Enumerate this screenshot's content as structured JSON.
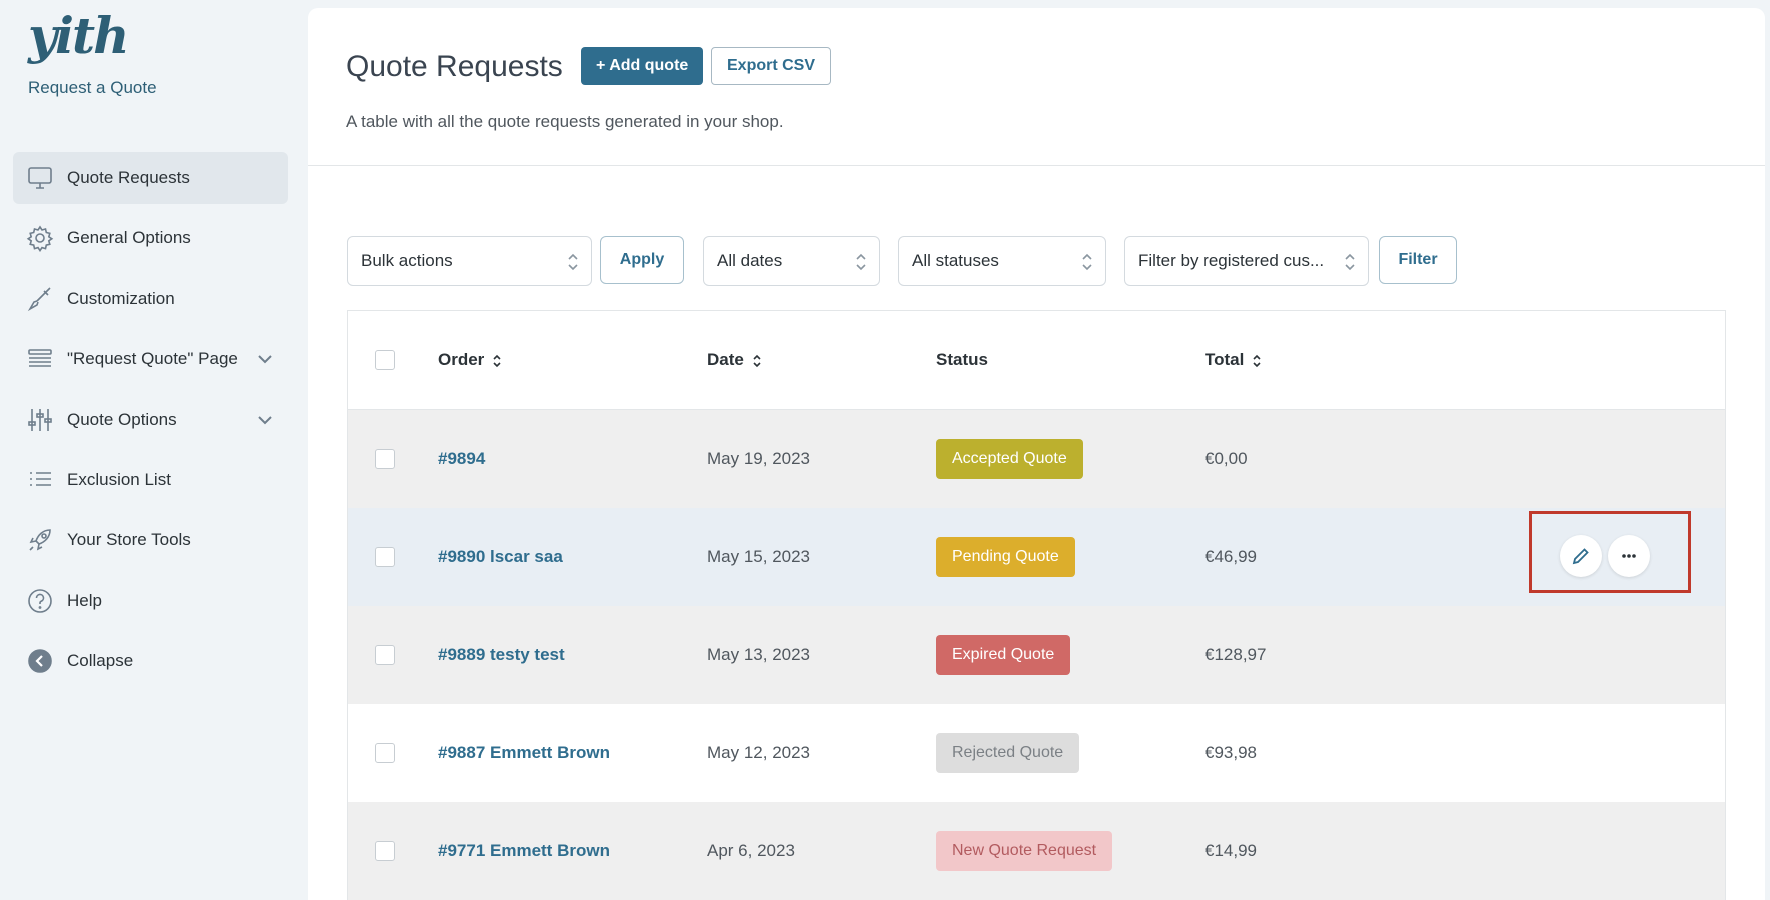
{
  "sidebar": {
    "logo_text": "yith",
    "plugin_name": "Request a Quote",
    "items": [
      {
        "label": "Quote Requests",
        "icon": "monitor-icon",
        "active": true
      },
      {
        "label": "General Options",
        "icon": "gear-icon"
      },
      {
        "label": "Customization",
        "icon": "brush-icon"
      },
      {
        "label": "\"Request Quote\" Page",
        "icon": "layers-icon",
        "has_submenu": true
      },
      {
        "label": "Quote Options",
        "icon": "sliders-icon",
        "has_submenu": true
      },
      {
        "label": "Exclusion List",
        "icon": "list-icon"
      },
      {
        "label": "Your Store Tools",
        "icon": "rocket-icon"
      },
      {
        "label": "Help",
        "icon": "help-circle-icon"
      },
      {
        "label": "Collapse",
        "icon": "collapse-arrow-icon"
      }
    ]
  },
  "header": {
    "title": "Quote Requests",
    "add_button": "+ Add quote",
    "export_button": "Export CSV",
    "description": "A table with all the quote requests generated in your shop."
  },
  "filters": {
    "bulk_actions": "Bulk actions",
    "apply_button": "Apply",
    "dates": "All dates",
    "statuses": "All statuses",
    "customer": "Filter by registered cus...",
    "filter_button": "Filter"
  },
  "table": {
    "columns": {
      "order": "Order",
      "date": "Date",
      "status": "Status",
      "total": "Total"
    },
    "rows": [
      {
        "order": "#9894",
        "date": "May 19, 2023",
        "status": "Accepted Quote",
        "status_key": "accepted",
        "total": "€0,00"
      },
      {
        "order": "#9890 lscar saa",
        "date": "May 15, 2023",
        "status": "Pending Quote",
        "status_key": "pending",
        "total": "€46,99"
      },
      {
        "order": "#9889 testy test",
        "date": "May 13, 2023",
        "status": "Expired Quote",
        "status_key": "expired",
        "total": "€128,97"
      },
      {
        "order": "#9887 Emmett Brown",
        "date": "May 12, 2023",
        "status": "Rejected Quote",
        "status_key": "rejected",
        "total": "€93,98"
      },
      {
        "order": "#9771 Emmett Brown",
        "date": "Apr 6, 2023",
        "status": "New Quote Request",
        "status_key": "new",
        "total": "€14,99"
      }
    ]
  },
  "colors": {
    "accent": "#2f6d8e",
    "highlight_border": "#c0392b",
    "accepted": "#bcb02e",
    "pending": "#dcae2c",
    "expired": "#d06966",
    "rejected": "#dddddd",
    "new": "#f2c7c9"
  }
}
